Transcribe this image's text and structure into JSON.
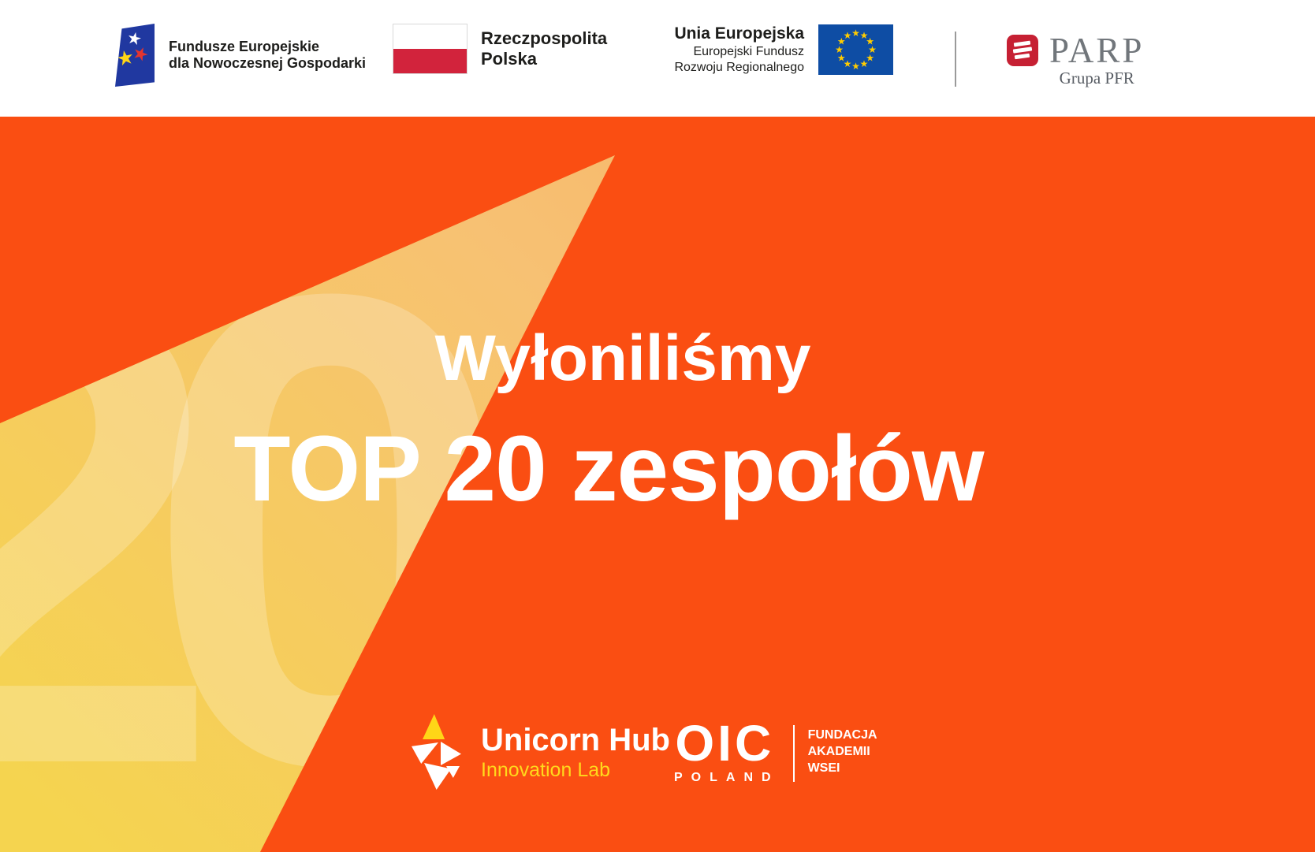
{
  "header": {
    "eu_funds": {
      "line1": "Fundusze Europejskie",
      "line2": "dla Nowoczesnej Gospodarki"
    },
    "poland": {
      "line1": "Rzeczpospolita",
      "line2": "Polska"
    },
    "eu": {
      "line1": "Unia Europejska",
      "line2": "Europejski Fundusz",
      "line3": "Rozwoju Regionalnego"
    },
    "parp": {
      "name": "PARP",
      "group": "Grupa PFR"
    }
  },
  "banner": {
    "watermark": "20",
    "subtitle": "Wyłoniliśmy",
    "title": "TOP 20 zespołów"
  },
  "footer": {
    "unicorn": {
      "name": "Unicorn Hub",
      "tagline": "Innovation Lab"
    },
    "oic": {
      "name": "OIC",
      "country": "POLAND"
    },
    "wsei": {
      "line1": "FUNDACJA",
      "line2": "AKADEMII",
      "line3": "WSEI"
    }
  },
  "colors": {
    "background_orange": "#FA4E12",
    "triangle_yellow": "#F5D44F",
    "triangle_tan": "#F8AC60",
    "accent_yellow": "#FFD91C",
    "unicorn_yellow": "#FFD617",
    "parp_red": "#C62033",
    "eu_flag_blue": "#0E4DA4",
    "fe_logo_blue": "#2038A0",
    "poland_flag_red": "#D2233C",
    "header_text": "#1D1D1B",
    "white": "#FFFFFF"
  }
}
